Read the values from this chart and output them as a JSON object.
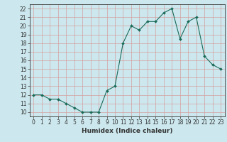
{
  "title": "",
  "xlabel": "Humidex (Indice chaleur)",
  "ylabel": "",
  "x": [
    0,
    1,
    2,
    3,
    4,
    5,
    6,
    7,
    8,
    9,
    10,
    11,
    12,
    13,
    14,
    15,
    16,
    17,
    18,
    19,
    20,
    21,
    22,
    23
  ],
  "y": [
    12,
    12,
    11.5,
    11.5,
    11,
    10.5,
    10,
    10,
    10,
    12.5,
    13,
    18,
    20,
    19.5,
    20.5,
    20.5,
    21.5,
    22,
    18.5,
    20.5,
    21,
    16.5,
    15.5,
    15
  ],
  "xlim": [
    -0.5,
    23.5
  ],
  "ylim": [
    9.5,
    22.5
  ],
  "yticks": [
    10,
    11,
    12,
    13,
    14,
    15,
    16,
    17,
    18,
    19,
    20,
    21,
    22
  ],
  "xticks": [
    0,
    1,
    2,
    3,
    4,
    5,
    6,
    7,
    8,
    9,
    10,
    11,
    12,
    13,
    14,
    15,
    16,
    17,
    18,
    19,
    20,
    21,
    22,
    23
  ],
  "line_color": "#1a6b5a",
  "marker_color": "#1a6b5a",
  "bg_color": "#cce8ee",
  "grid_color": "#d4a0a0",
  "axes_color": "#333333",
  "label_fontsize": 5.5,
  "xlabel_fontsize": 6.5
}
